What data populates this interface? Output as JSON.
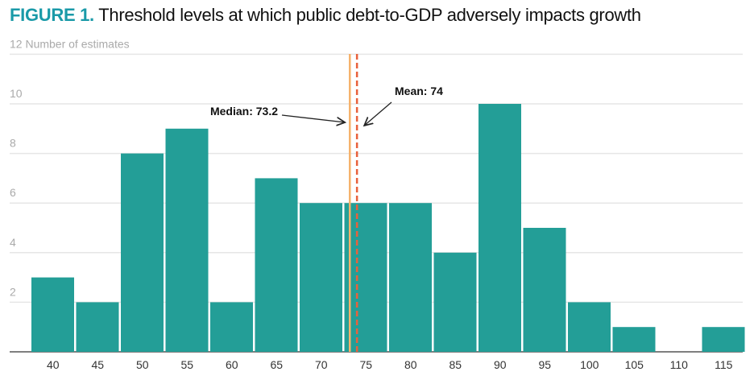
{
  "title_prefix": "FIGURE 1.",
  "title_text": " Threshold levels at which public debt-to-GDP adversely impacts growth",
  "chart_data": {
    "type": "bar",
    "title": "Threshold levels at which public debt-to-GDP adversely impacts growth",
    "ylabel": "Number of estimates",
    "xlabel": "",
    "categories": [
      "40",
      "45",
      "50",
      "55",
      "60",
      "65",
      "70",
      "75",
      "80",
      "85",
      "90",
      "95",
      "100",
      "105",
      "110",
      "115"
    ],
    "values": [
      3,
      2,
      8,
      9,
      2,
      7,
      6,
      6,
      6,
      4,
      10,
      5,
      2,
      1,
      0,
      1
    ],
    "ylim": [
      0,
      12
    ],
    "yticks": [
      2,
      4,
      6,
      8,
      10,
      12
    ],
    "grid": true,
    "bar_color": "#239e97",
    "annotations": [
      {
        "label": "Median: 73.2",
        "value": 73.2,
        "color": "#f6b26b",
        "style": "solid"
      },
      {
        "label": "Mean: 74",
        "value": 74,
        "color": "#e8613c",
        "style": "dashed"
      }
    ]
  }
}
